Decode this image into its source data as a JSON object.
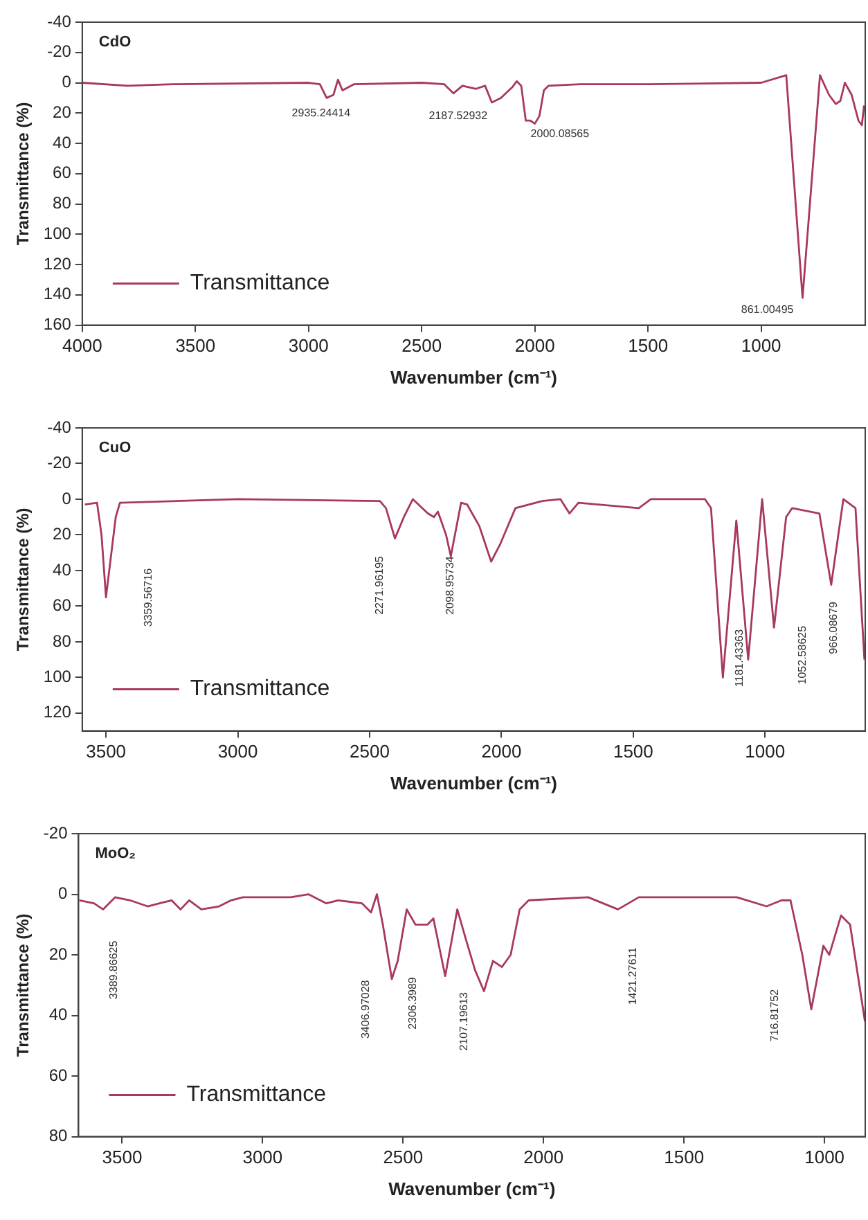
{
  "chart_data": [
    {
      "type": "line",
      "title": "CdO",
      "xlabel": "Wavenumber (cm⁻¹)",
      "ylabel": "Transmittance (%)",
      "xlim": [
        4000,
        540
      ],
      "xticks": [
        4000,
        3500,
        3000,
        2500,
        2000,
        1500,
        1000
      ],
      "ylim": [
        160,
        -40
      ],
      "yticks": [
        -40,
        -20,
        0,
        20,
        40,
        60,
        80,
        100,
        120,
        140,
        160
      ],
      "legend": "bottom left",
      "grid": false,
      "marker": "none",
      "line_style": "solid",
      "series": [
        {
          "name": "Transmittance",
          "color": "#a8385f",
          "x": [
            4000,
            3800,
            3600,
            3000,
            2950,
            2920,
            2890,
            2870,
            2850,
            2800,
            2500,
            2400,
            2360,
            2320,
            2260,
            2220,
            2190,
            2150,
            2100,
            2080,
            2060,
            2040,
            2020,
            2000,
            1980,
            1960,
            1940,
            1800,
            1500,
            1000,
            889,
            817,
            740,
            700,
            670,
            650,
            630,
            600,
            570,
            555,
            545
          ],
          "values": [
            0,
            2,
            1,
            0,
            1,
            10,
            8,
            -2,
            5,
            1,
            0,
            1,
            7,
            2,
            4,
            2,
            13,
            10,
            3,
            -1,
            2,
            25,
            25,
            27,
            22,
            5,
            2,
            1,
            1,
            0,
            -5,
            142,
            -5,
            8,
            14,
            12,
            0,
            8,
            25,
            28,
            15
          ]
        }
      ],
      "annotations": [
        "2935.24414",
        "2187.52932",
        "2000.08565",
        "861.00495"
      ]
    },
    {
      "type": "line",
      "title": "CuO",
      "xlabel": "Wavenumber (cm⁻¹)",
      "ylabel": "Transmittance (%)",
      "xlim": [
        3590,
        620
      ],
      "xticks": [
        3500,
        3000,
        2500,
        2000,
        1500,
        1000
      ],
      "ylim": [
        130,
        -40
      ],
      "yticks": [
        -40,
        -20,
        0,
        20,
        40,
        60,
        80,
        100,
        120
      ],
      "legend": "bottom left",
      "grid": false,
      "marker": "none",
      "line_style": "solid",
      "series": [
        {
          "name": "Transmittance",
          "color": "#a8385f",
          "x": [
            3580,
            3534,
            3517,
            3500,
            3463,
            3447,
            3000,
            2461,
            2438,
            2404,
            2370,
            2336,
            2279,
            2256,
            2241,
            2210,
            2192,
            2153,
            2130,
            2084,
            2039,
            2004,
            1947,
            1845,
            1776,
            1742,
            1708,
            1479,
            1433,
            1228,
            1205,
            1160,
            1109,
            1064,
            1011,
            966,
            920,
            897,
            794,
            749,
            703,
            657,
            623
          ],
          "values": [
            3,
            2,
            20,
            55,
            10,
            2,
            0,
            1,
            5,
            22,
            10,
            0,
            8,
            10,
            7,
            20,
            32,
            2,
            3,
            15,
            35,
            25,
            5,
            1,
            0,
            8,
            2,
            5,
            0,
            0,
            5,
            100,
            12,
            90,
            0,
            72,
            10,
            5,
            8,
            48,
            0,
            5,
            90
          ]
        }
      ],
      "annotations": [
        "3359.56716",
        "2271.96195",
        "2098.95734",
        "1181.43363",
        "1052.58625",
        "966.08679"
      ]
    },
    {
      "type": "line",
      "title": "MoO₂",
      "xlabel": "Wavenumber (cm⁻¹)",
      "ylabel": "Transmittance (%)",
      "xlim": [
        3655,
        855
      ],
      "xticks": [
        3500,
        3000,
        2500,
        2000,
        1500,
        1000
      ],
      "ylim": [
        80,
        -20
      ],
      "yticks": [
        -20,
        0,
        20,
        40,
        60,
        80
      ],
      "legend": "bottom left",
      "grid": false,
      "marker": "none",
      "line_style": "solid",
      "series": [
        {
          "name": "Transmittance",
          "color": "#a8385f",
          "x": [
            3652,
            3600,
            3568,
            3525,
            3472,
            3409,
            3367,
            3324,
            3292,
            3261,
            3218,
            3155,
            3112,
            3070,
            2900,
            2837,
            2773,
            2731,
            2646,
            2614,
            2593,
            2572,
            2540,
            2519,
            2487,
            2456,
            2413,
            2392,
            2350,
            2307,
            2276,
            2244,
            2212,
            2180,
            2148,
            2117,
            2085,
            2053,
            1841,
            1735,
            1661,
            1481,
            1312,
            1206,
            1153,
            1121,
            1079,
            1047,
            1004,
            983,
            941,
            909,
            856
          ],
          "values": [
            2,
            3,
            5,
            1,
            2,
            4,
            3,
            2,
            5,
            2,
            5,
            4,
            2,
            1,
            1,
            0,
            3,
            2,
            3,
            6,
            0,
            10,
            28,
            22,
            5,
            10,
            10,
            8,
            27,
            5,
            15,
            25,
            32,
            22,
            24,
            20,
            5,
            2,
            1,
            5,
            1,
            1,
            1,
            4,
            2,
            2,
            20,
            38,
            17,
            20,
            7,
            10,
            42
          ]
        }
      ],
      "annotations": [
        "3389.86625",
        "3406.97028",
        "2306.3989",
        "2107.19613",
        "1421.27611",
        "716.81752"
      ]
    }
  ]
}
